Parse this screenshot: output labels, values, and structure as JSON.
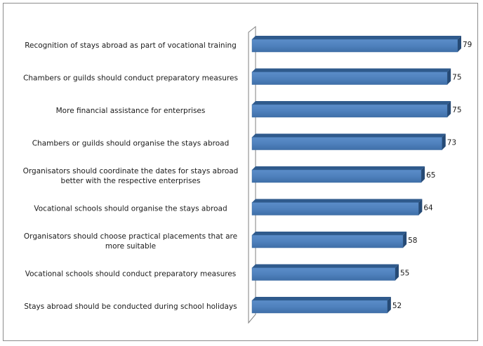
{
  "chart_data": {
    "type": "bar",
    "orientation": "horizontal",
    "style": "3d",
    "bar_color": "#4f81bd",
    "grid": false,
    "categories": [
      "Recognition of stays abroad as part of vocational training",
      "Chambers or guilds should conduct preparatory measures",
      "More financial assistance  for enterprises",
      "Chambers or guilds should organise the stays abroad",
      "Organisators should coordinate the dates for stays abroad better with the respective enterprises",
      "Vocational schools should organise the stays abroad",
      "Organisators should choose practical placements that are more suitable",
      "Vocational schools should conduct preparatory measures",
      "Stays abroad should be conducted during school holidays"
    ],
    "values": [
      79,
      75,
      75,
      73,
      65,
      64,
      58,
      55,
      52
    ],
    "xlim": [
      0,
      79
    ]
  }
}
